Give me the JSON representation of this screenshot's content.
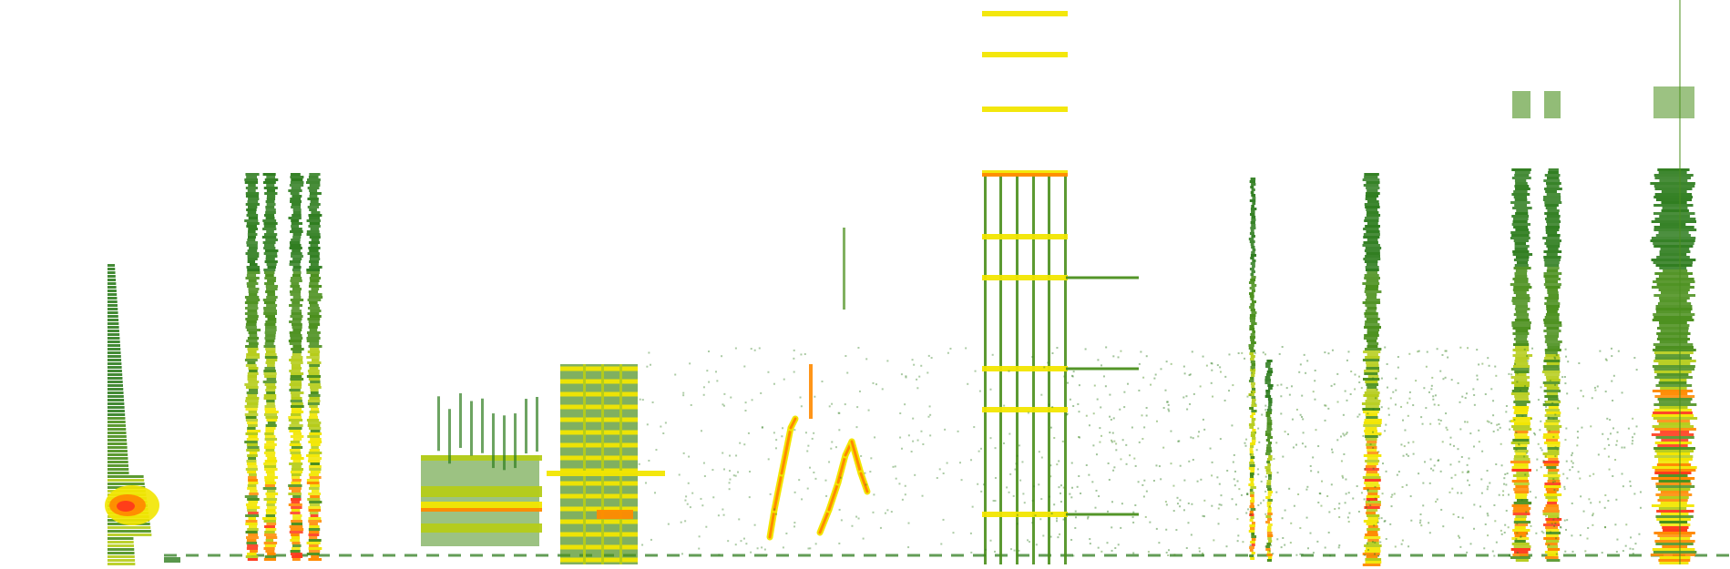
{
  "image": {
    "kind": "spectrogram",
    "background": "#ffffff",
    "palette": {
      "faint": "#2f7d1f",
      "low": "#4a8f1c",
      "mid": "#b5cc18",
      "high": "#f2e600",
      "peak": "#ff8a00",
      "max": "#ff3a1a"
    }
  }
}
